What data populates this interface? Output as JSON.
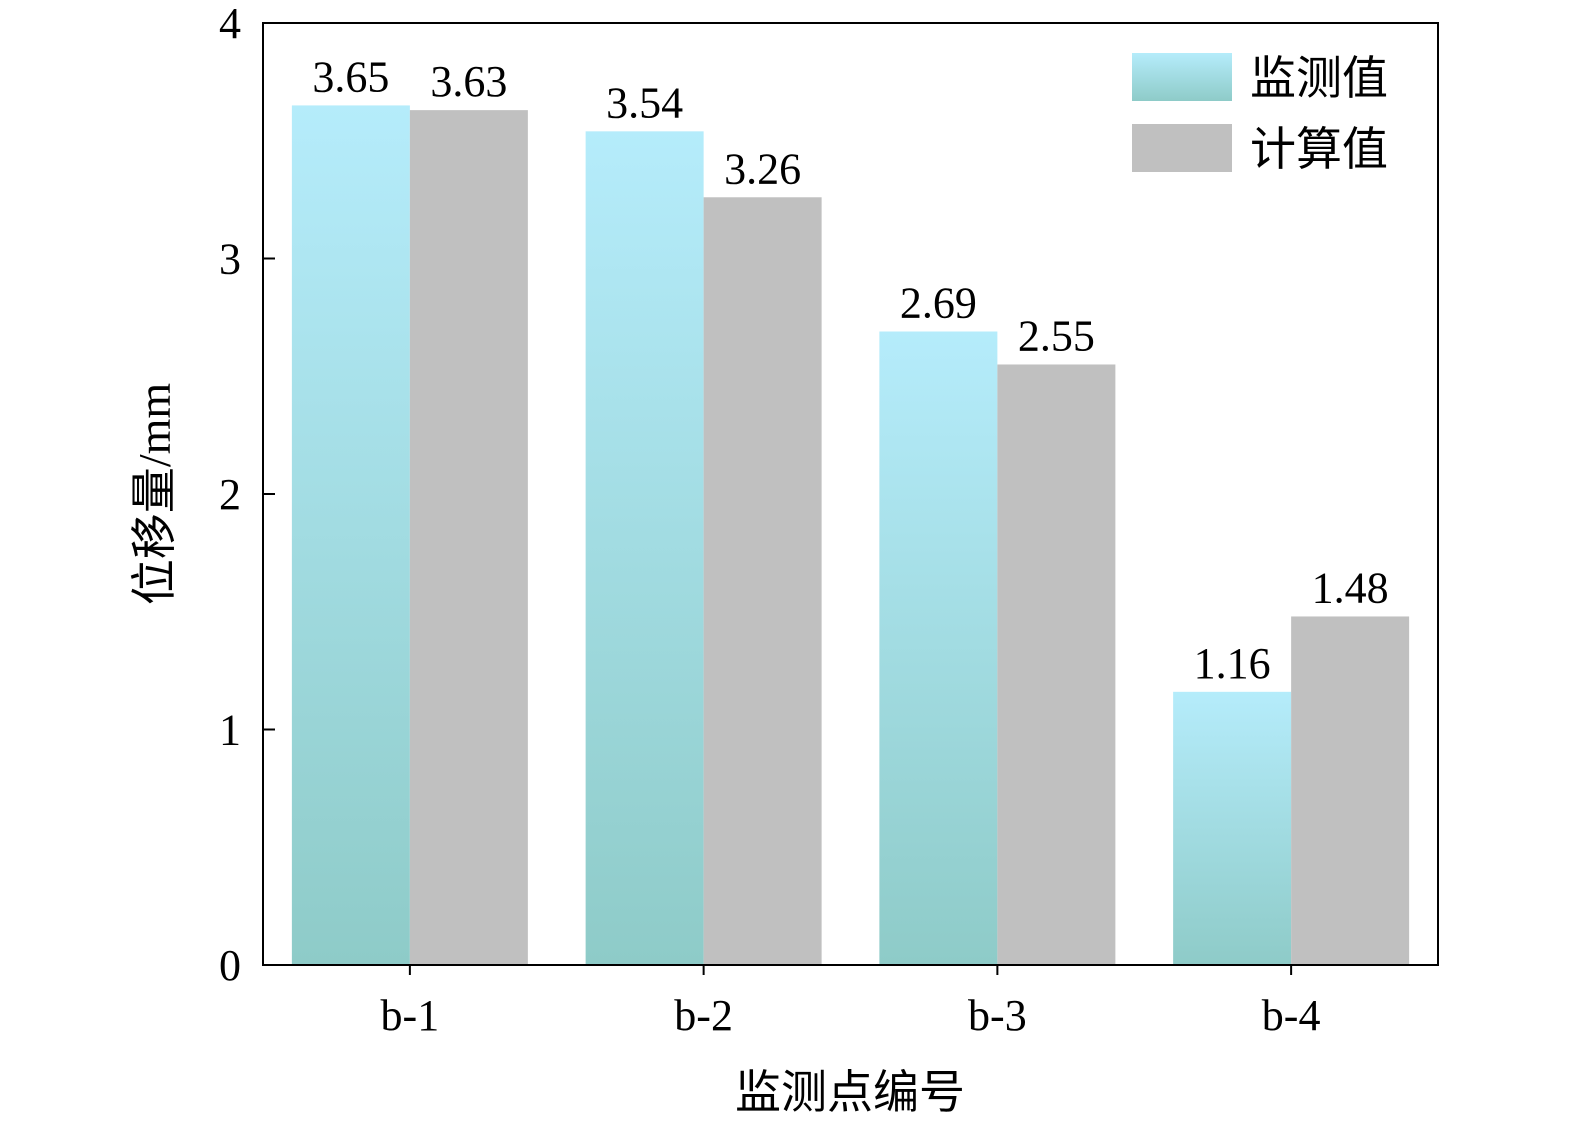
{
  "chart_data": {
    "type": "bar",
    "categories": [
      "b-1",
      "b-2",
      "b-3",
      "b-4"
    ],
    "series": [
      {
        "name": "监测值",
        "values": [
          3.65,
          3.54,
          2.69,
          1.16
        ],
        "color_top": "#b5ecfb",
        "color_bottom": "#8ecbc8"
      },
      {
        "name": "计算值",
        "values": [
          3.63,
          3.26,
          2.55,
          1.48
        ],
        "color": "#c0c0c0"
      }
    ],
    "data_labels": [
      [
        "3.65",
        "3.54",
        "2.69",
        "1.16"
      ],
      [
        "3.63",
        "3.26",
        "2.55",
        "1.48"
      ]
    ],
    "title": "",
    "xlabel": "监测点编号",
    "ylabel": "位移量/mm",
    "ylim": [
      0,
      4
    ],
    "yticks": [
      "0",
      "1",
      "2",
      "3",
      "4"
    ],
    "grid": false,
    "legend_position": "top-right"
  }
}
